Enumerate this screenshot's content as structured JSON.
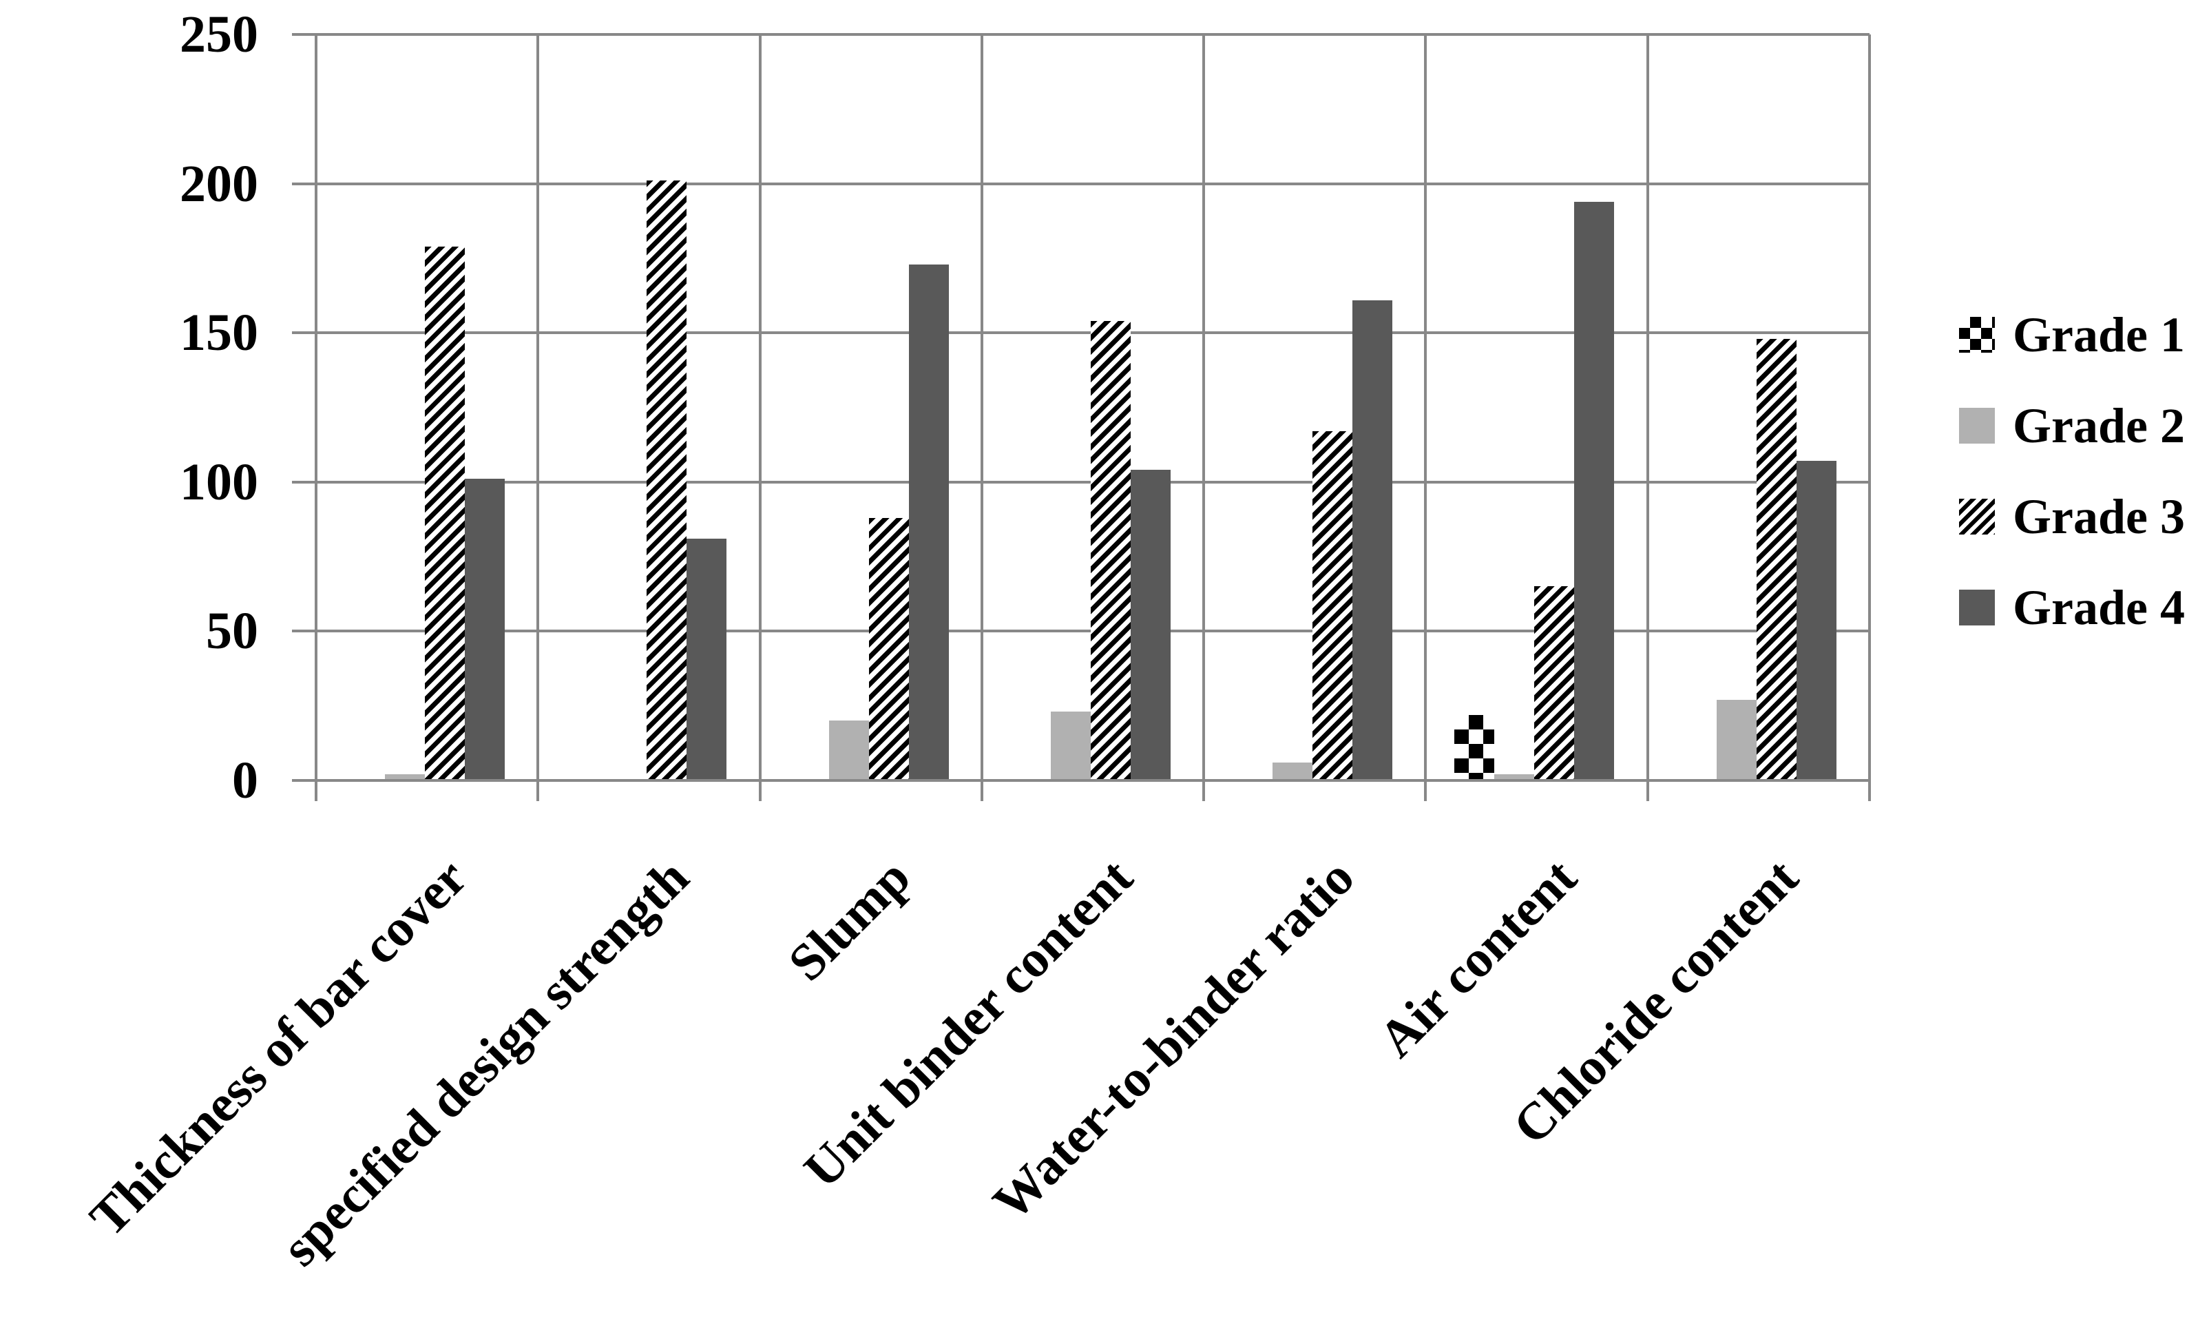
{
  "chart_data": {
    "type": "bar",
    "title": "",
    "xlabel": "",
    "ylabel": "",
    "categories": [
      "Thickness of bar cover",
      "specified design strength",
      "Slump",
      "Unit binder content",
      "Water-to-binder ratio",
      "Air content",
      "Chloride content"
    ],
    "series": [
      {
        "name": "Grade 1",
        "pattern": "checkerboard",
        "colors": [
          "#000000",
          "#ffffff"
        ],
        "values": [
          0,
          0,
          0,
          0,
          0,
          22,
          0
        ]
      },
      {
        "name": "Grade 2",
        "pattern": "solid",
        "color": "#b1b1b1",
        "values": [
          2,
          0,
          20,
          23,
          6,
          2,
          27
        ]
      },
      {
        "name": "Grade 3",
        "pattern": "diagonal-stripes",
        "colors": [
          "#000000",
          "#ffffff"
        ],
        "values": [
          179,
          201,
          88,
          154,
          117,
          65,
          148
        ]
      },
      {
        "name": "Grade 4",
        "pattern": "solid",
        "color": "#595959",
        "values": [
          101,
          81,
          173,
          104,
          161,
          194,
          107
        ]
      }
    ],
    "ylim": [
      0,
      250
    ],
    "yticks": [
      "0",
      "50",
      "100",
      "150",
      "200",
      "250"
    ],
    "grid": true,
    "gridline_color": "#888888",
    "axis_text_color": "#000000",
    "legend_position": "right",
    "legend_labels": [
      "Grade 1",
      "Grade 2",
      "Grade 3",
      "Grade 4"
    ],
    "background": "#ffffff"
  }
}
